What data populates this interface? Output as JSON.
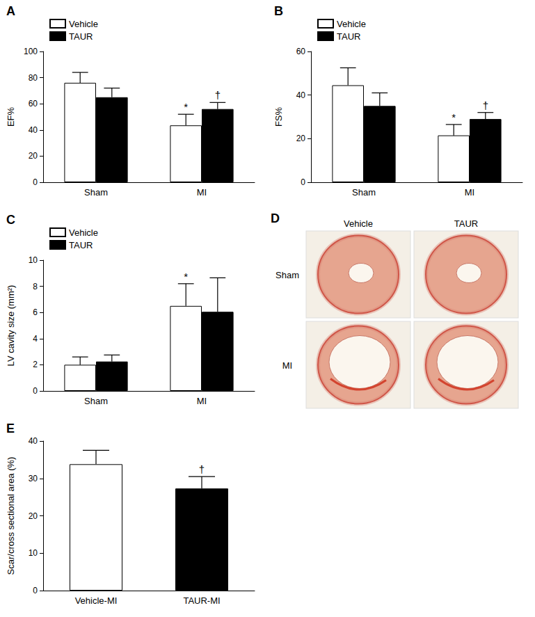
{
  "chart_data": [
    {
      "type": "bar",
      "title": "A",
      "ylabel": "EF%",
      "categories": [
        "Sham",
        "MI"
      ],
      "series": [
        {
          "name": "Vehicle",
          "color": "#ffffff",
          "values": [
            76,
            43.5
          ],
          "errors": [
            8,
            8.5
          ]
        },
        {
          "name": "TAUR",
          "color": "#000000",
          "values": [
            65,
            56
          ],
          "errors": [
            7,
            5
          ]
        }
      ],
      "annotations": [
        {
          "text": "*",
          "series": "Vehicle",
          "category": "MI"
        },
        {
          "text": "†",
          "series": "TAUR",
          "category": "MI"
        }
      ],
      "ylim": [
        0,
        100
      ],
      "yticks": [
        0,
        20,
        40,
        60,
        80,
        100
      ],
      "grid": false,
      "legend": "upper left"
    },
    {
      "type": "bar",
      "title": "B",
      "ylabel": "FS%",
      "categories": [
        "Sham",
        "MI"
      ],
      "series": [
        {
          "name": "Vehicle",
          "color": "#ffffff",
          "values": [
            44.5,
            21.5
          ],
          "errors": [
            8,
            5
          ]
        },
        {
          "name": "TAUR",
          "color": "#000000",
          "values": [
            35,
            29
          ],
          "errors": [
            6,
            3
          ]
        }
      ],
      "annotations": [
        {
          "text": "*",
          "series": "Vehicle",
          "category": "MI"
        },
        {
          "text": "†",
          "series": "TAUR",
          "category": "MI"
        }
      ],
      "ylim": [
        0,
        60
      ],
      "yticks": [
        0,
        20,
        40,
        60
      ],
      "grid": false,
      "legend": "upper left"
    },
    {
      "type": "bar",
      "title": "C",
      "ylabel": "LV cavity size (mm²)",
      "categories": [
        "Sham",
        "MI"
      ],
      "series": [
        {
          "name": "Vehicle",
          "color": "#ffffff",
          "values": [
            2.0,
            6.5
          ],
          "errors": [
            0.6,
            1.7
          ]
        },
        {
          "name": "TAUR",
          "color": "#000000",
          "values": [
            2.25,
            6.05
          ],
          "errors": [
            0.5,
            2.6
          ]
        }
      ],
      "annotations": [
        {
          "text": "*",
          "series": "Vehicle",
          "category": "MI"
        }
      ],
      "ylim": [
        0,
        10
      ],
      "yticks": [
        0,
        2,
        4,
        6,
        8,
        10
      ],
      "grid": false,
      "legend": "upper left"
    },
    {
      "type": "image",
      "title": "D",
      "columns": [
        "Vehicle",
        "TAUR"
      ],
      "rows": [
        "Sham",
        "MI"
      ]
    },
    {
      "type": "bar",
      "title": "E",
      "ylabel": "Scar/cross sectional area (%)",
      "categories": [
        "Vehicle-MI",
        "TAUR-MI"
      ],
      "values": [
        33.8,
        27.3
      ],
      "errors": [
        3.7,
        3.2
      ],
      "colors": [
        "#ffffff",
        "#000000"
      ],
      "annotations": [
        {
          "text": "†",
          "category": "TAUR-MI"
        }
      ],
      "ylim": [
        0,
        40
      ],
      "yticks": [
        0,
        10,
        20,
        30,
        40
      ],
      "grid": false
    }
  ]
}
